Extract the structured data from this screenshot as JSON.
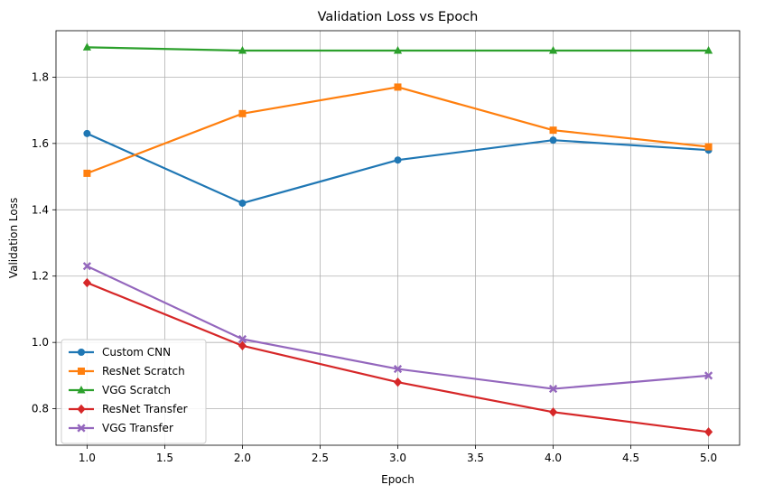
{
  "chart_data": {
    "type": "line",
    "title": "Validation Loss vs Epoch",
    "xlabel": "Epoch",
    "ylabel": "Validation Loss",
    "xlim": [
      0.8,
      5.2
    ],
    "ylim": [
      0.69,
      1.94
    ],
    "xticks": [
      1.0,
      1.5,
      2.0,
      2.5,
      3.0,
      3.5,
      4.0,
      4.5,
      5.0
    ],
    "xtick_labels": [
      "1.0",
      "1.5",
      "2.0",
      "2.5",
      "3.0",
      "3.5",
      "4.0",
      "4.5",
      "5.0"
    ],
    "yticks": [
      0.8,
      1.0,
      1.2,
      1.4,
      1.6,
      1.8
    ],
    "ytick_labels": [
      "0.8",
      "1.0",
      "1.2",
      "1.4",
      "1.6",
      "1.8"
    ],
    "grid": true,
    "legend_position": "lower-left",
    "x": [
      1,
      2,
      3,
      4,
      5
    ],
    "series": [
      {
        "name": "Custom CNN",
        "values": [
          1.63,
          1.42,
          1.55,
          1.61,
          1.58
        ],
        "color": "#1f77b4",
        "marker": "circle"
      },
      {
        "name": "ResNet Scratch",
        "values": [
          1.51,
          1.69,
          1.77,
          1.64,
          1.59
        ],
        "color": "#ff7f0e",
        "marker": "square"
      },
      {
        "name": "VGG Scratch",
        "values": [
          1.89,
          1.88,
          1.88,
          1.88,
          1.88
        ],
        "color": "#2ca02c",
        "marker": "triangle"
      },
      {
        "name": "ResNet Transfer",
        "values": [
          1.18,
          0.99,
          0.88,
          0.79,
          0.73
        ],
        "color": "#d62728",
        "marker": "diamond"
      },
      {
        "name": "VGG Transfer",
        "values": [
          1.23,
          1.01,
          0.92,
          0.86,
          0.9
        ],
        "color": "#9467bd",
        "marker": "x"
      }
    ]
  }
}
